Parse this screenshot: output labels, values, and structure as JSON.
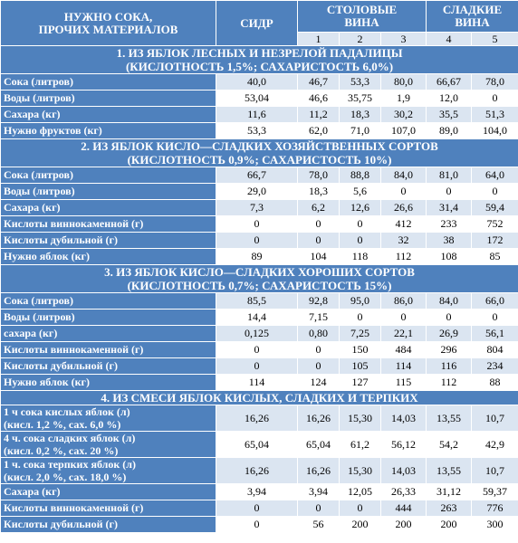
{
  "header": {
    "col0": "НУЖНО СОКА,\nПРОЧИХ МАТЕРИАЛОВ",
    "col1": "СИДР",
    "col2": "СТОЛОВЫЕ\nВИНА",
    "col3": "СЛАДКИЕ\nВИНА",
    "nums": [
      "1",
      "2",
      "3",
      "4",
      "5"
    ]
  },
  "sections": [
    {
      "title": "1. ИЗ ЯБЛОК ЛЕСНЫХ И НЕЗРЕЛОЙ ПАДАЛИЦЫ\n(КИСЛОТНОСТЬ 1,5%; САХАРИСТОСТЬ 6,0%)",
      "rows": [
        {
          "label": "Сока (литров)",
          "values": [
            "40,0",
            "46,7",
            "53,3",
            "80,0",
            "66,67",
            "78,0"
          ]
        },
        {
          "label": "Воды (литров)",
          "values": [
            "53,04",
            "46,6",
            "35,75",
            "1,9",
            "12,0",
            "0"
          ]
        },
        {
          "label": "Сахара (кг)",
          "values": [
            "11,6",
            "11,2",
            "18,3",
            "30,2",
            "35,5",
            "51,3"
          ]
        },
        {
          "label": "Нужно фруктов (кг)",
          "values": [
            "53,3",
            "62,0",
            "71,0",
            "107,0",
            "89,0",
            "104,0"
          ]
        }
      ]
    },
    {
      "title": "2. ИЗ ЯБЛОК КИСЛО—СЛАДКИХ ХОЗЯЙСТВЕННЫХ СОРТОВ\n(КИСЛОТНОСТЬ 0,9%; САХАРИСТОСТЬ 10%)",
      "rows": [
        {
          "label": "Сока (литров)",
          "values": [
            "66,7",
            "78,0",
            "88,8",
            "84,0",
            "81,0",
            "64,0"
          ]
        },
        {
          "label": "Воды (литров)",
          "values": [
            "29,0",
            "18,3",
            "5,6",
            "0",
            "0",
            "0"
          ]
        },
        {
          "label": "Сахара (кг)",
          "values": [
            "7,3",
            "6,2",
            "12,6",
            "26,6",
            "31,4",
            "59,4"
          ]
        },
        {
          "label": "Кислоты виннокаменной (г)",
          "values": [
            "0",
            "0",
            "0",
            "412",
            "233",
            "752"
          ]
        },
        {
          "label": "Кислоты дубильной (г)",
          "values": [
            "0",
            "0",
            "0",
            "32",
            "38",
            "172"
          ]
        },
        {
          "label": "Нужно яблок (кг)",
          "values": [
            "89",
            "104",
            "118",
            "112",
            "108",
            "85"
          ]
        }
      ]
    },
    {
      "title": "3. ИЗ ЯБЛОК КИСЛО—СЛАДКИХ ХОРОШИХ СОРТОВ\n(КИСЛОТНОСТЬ 0,7%; САХАРИСТОСТЬ 15%)",
      "rows": [
        {
          "label": "Сока (литров)",
          "values": [
            "85,5",
            "92,8",
            "95,0",
            "86,0",
            "84,0",
            "66,0"
          ]
        },
        {
          "label": "Воды (литров)",
          "values": [
            "14,4",
            "7,15",
            "0",
            "0",
            "0",
            "0"
          ]
        },
        {
          "label": "сахара (кг)",
          "values": [
            "0,125",
            "0,80",
            "7,25",
            "22,1",
            "26,9",
            "56,1"
          ]
        },
        {
          "label": "Кислоты виннокаменной (г)",
          "values": [
            "0",
            "0",
            "150",
            "484",
            "296",
            "804"
          ]
        },
        {
          "label": "Кислоты дубильной (г)",
          "values": [
            "0",
            "0",
            "105",
            "114",
            "116",
            "234"
          ]
        },
        {
          "label": "Нужно яблок (кг)",
          "values": [
            "114",
            "124",
            "127",
            "115",
            "112",
            "88"
          ]
        }
      ]
    },
    {
      "title": "4. ИЗ СМЕСИ ЯБЛОК КИСЛЫХ, СЛАДКИХ И ТЕРПКИХ",
      "rows": [
        {
          "label": "1 ч сока кислых яблок (л)\n(кисл. 1,2 %, сах. 6,0 %)",
          "values": [
            "16,26",
            "16,26",
            "15,30",
            "14,03",
            "13,55",
            "10,7"
          ]
        },
        {
          "label": "4 ч. сока сладких яблок (л)\n(кисл. 0,2 %, сах. 20 %)",
          "values": [
            "65,04",
            "65,04",
            "61,2",
            "56,12",
            "54,2",
            "42,9"
          ]
        },
        {
          "label": "1 ч. сока терпких яблок (л)\n(кисл. 2,0 %, сах. 18,0 %)",
          "values": [
            "16,26",
            "16,26",
            "15,30",
            "14,03",
            "13,55",
            "10,7"
          ]
        },
        {
          "label": "Сахара (кг)",
          "values": [
            "3,94",
            "3,94",
            "12,05",
            "26,33",
            "31,12",
            "59,37"
          ]
        },
        {
          "label": "Кислоты виннокаменной (г)",
          "values": [
            "0",
            "0",
            "0",
            "444",
            "263",
            "776"
          ]
        },
        {
          "label": "Кислоты дубильной (г)",
          "values": [
            "0",
            "56",
            "200",
            "200",
            "200",
            "300"
          ]
        }
      ]
    }
  ]
}
